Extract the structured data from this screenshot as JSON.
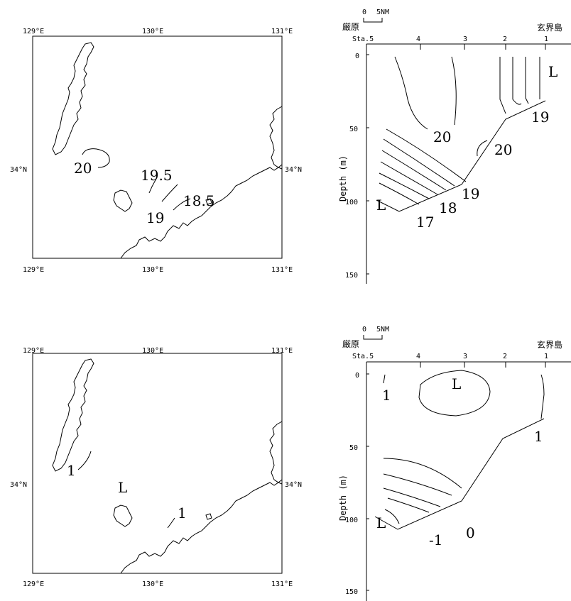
{
  "top_map": {
    "lon_top": [
      "129°E",
      "130°E",
      "131°E"
    ],
    "lon_bottom": [
      "129°E",
      "130°E",
      "131°E"
    ],
    "lat_left": "34°N",
    "lat_right": "34°N",
    "contours": [
      "20",
      "19.5",
      "19",
      "18.5"
    ]
  },
  "top_section": {
    "scale_zero": "0",
    "scale_len": "5NM",
    "left_place": "厳原",
    "right_place": "玄界島",
    "station_prefix": "Sta.5",
    "stations": [
      "4",
      "3",
      "2",
      "1"
    ],
    "depth_ticks": [
      "0",
      "50",
      "100",
      "150"
    ],
    "ylabel": "Depth (m)",
    "labels": [
      "L",
      "20",
      "20",
      "19",
      "19",
      "18",
      "17",
      "L"
    ]
  },
  "bottom_map": {
    "lon_top": [
      "129°E",
      "130°E",
      "131°E"
    ],
    "lon_bottom": [
      "129°E",
      "130°E",
      "131°E"
    ],
    "lat_left": "34°N",
    "lat_right": "34°N",
    "contours": [
      "1",
      "L",
      "1"
    ]
  },
  "bottom_section": {
    "scale_zero": "0",
    "scale_len": "5NM",
    "left_place": "厳原",
    "right_place": "玄界島",
    "station_prefix": "Sta.5",
    "stations": [
      "4",
      "3",
      "2",
      "1"
    ],
    "depth_ticks": [
      "0",
      "50",
      "100",
      "150"
    ],
    "ylabel": "Depth (m)",
    "labels": [
      "1",
      "L",
      "1",
      "0",
      "-1",
      "L"
    ]
  }
}
